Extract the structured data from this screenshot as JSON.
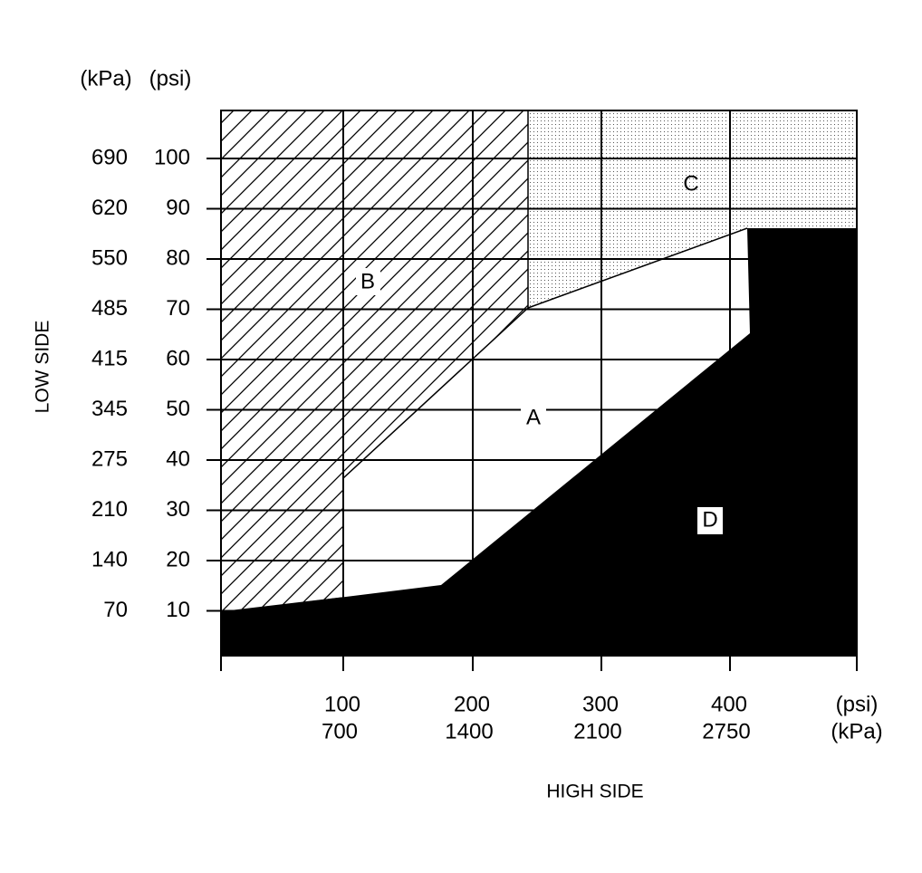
{
  "axes": {
    "y_units": [
      "(kPa)",
      "(psi)"
    ],
    "y_label": "LOW SIDE",
    "y_ticks_kpa": [
      690,
      620,
      550,
      485,
      415,
      345,
      275,
      210,
      140,
      70
    ],
    "y_ticks_psi": [
      100,
      90,
      80,
      70,
      60,
      50,
      40,
      30,
      20,
      10
    ],
    "x_ticks_psi": [
      100,
      200,
      300,
      400
    ],
    "x_ticks_kpa": [
      700,
      1400,
      2100,
      2750
    ],
    "x_units": [
      "(psi)",
      "(kPa)"
    ],
    "x_label": "HIGH SIDE"
  },
  "regions": {
    "A": "A",
    "B": "B",
    "C": "C",
    "D": "D"
  }
}
